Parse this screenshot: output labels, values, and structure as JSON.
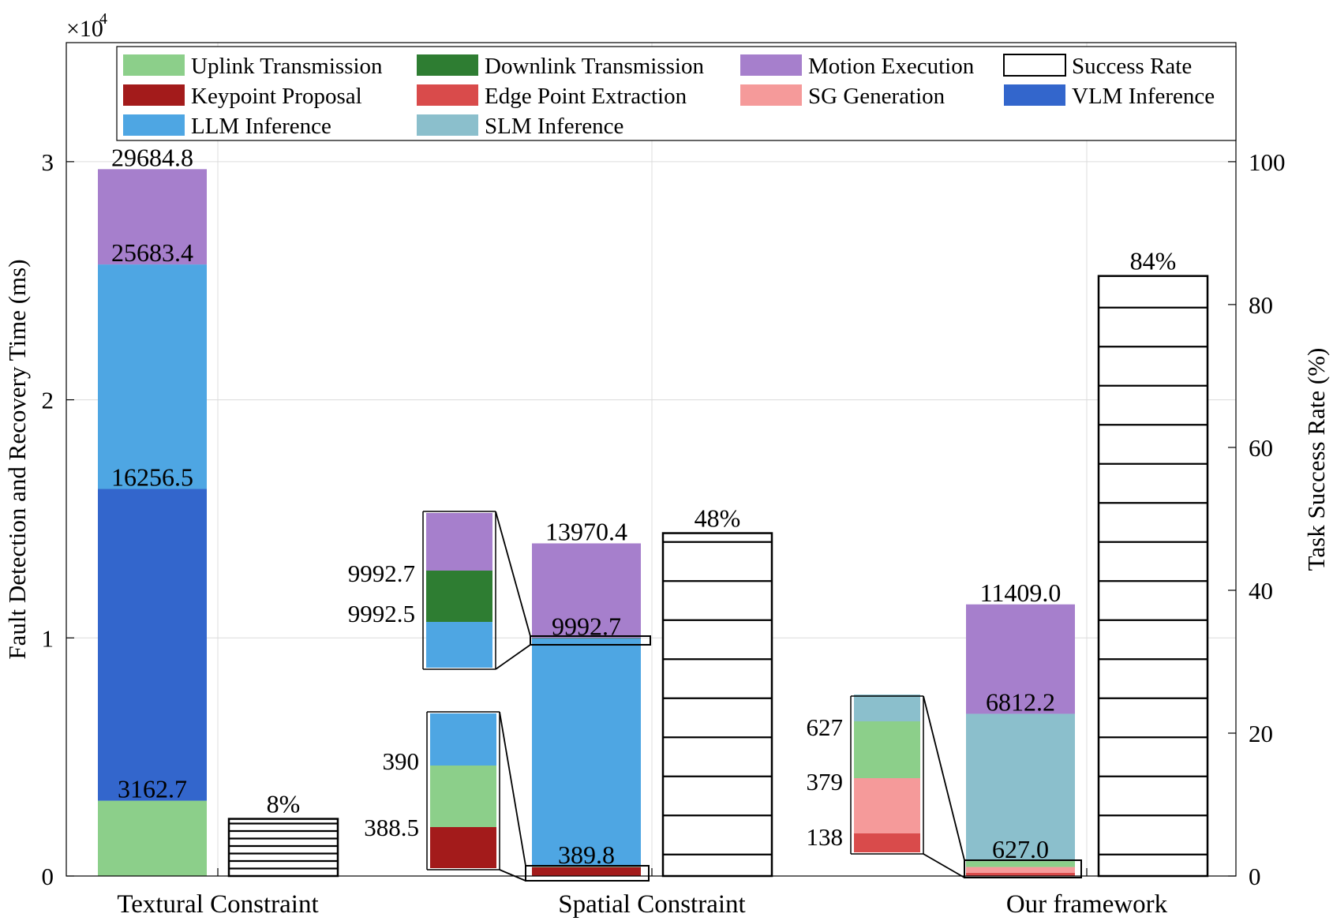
{
  "chart_data": {
    "type": "bar",
    "stacked": true,
    "categories": [
      "Textural Constraint",
      "Spatial Constraint",
      "Our framework"
    ],
    "ylabel_left": "Fault Detection and Recovery Time (ms)",
    "ylabel_right": "Task Success Rate (%)",
    "exponent_label": "×10",
    "exponent_power": "4",
    "ylim_left": [
      0,
      35000
    ],
    "ylim_right": [
      0,
      116.67
    ],
    "yticks_left": [
      {
        "value": 0,
        "label": "0"
      },
      {
        "value": 10000,
        "label": "1"
      },
      {
        "value": 20000,
        "label": "2"
      },
      {
        "value": 30000,
        "label": "3"
      }
    ],
    "yticks_right": [
      {
        "value": 0,
        "label": "0"
      },
      {
        "value": 20,
        "label": "20"
      },
      {
        "value": 40,
        "label": "40"
      },
      {
        "value": 60,
        "label": "60"
      },
      {
        "value": 80,
        "label": "80"
      },
      {
        "value": 100,
        "label": "100"
      }
    ],
    "grid": true,
    "legend_placement": "top",
    "legend": [
      {
        "key": "uplink",
        "label": "Uplink Transmission",
        "color": "#8ccf8a"
      },
      {
        "key": "downlink",
        "label": "Downlink Transmission",
        "color": "#2e7d32"
      },
      {
        "key": "motion",
        "label": "Motion Execution",
        "color": "#a67fcc"
      },
      {
        "key": "success",
        "label": "Success Rate",
        "color": "#ffffff"
      },
      {
        "key": "keypoint",
        "label": "Keypoint Proposal",
        "color": "#a31b1b"
      },
      {
        "key": "edge",
        "label": "Edge Point Extraction",
        "color": "#d94b4b"
      },
      {
        "key": "sg",
        "label": "SG Generation",
        "color": "#f59a9a"
      },
      {
        "key": "vlm",
        "label": "VLM Inference",
        "color": "#3366cc"
      },
      {
        "key": "llm",
        "label": "LLM Inference",
        "color": "#4ea6e3"
      },
      {
        "key": "slm",
        "label": "SLM Inference",
        "color": "#8bbfcc"
      }
    ],
    "stacks": [
      {
        "category": "Textural Constraint",
        "segments": [
          {
            "key": "uplink",
            "from": 0,
            "to": 3162.7
          },
          {
            "key": "vlm",
            "from": 3162.7,
            "to": 16256.5
          },
          {
            "key": "llm",
            "from": 16256.5,
            "to": 25683.4
          },
          {
            "key": "motion",
            "from": 25683.4,
            "to": 29684.8
          }
        ],
        "labels": [
          {
            "value": 3162.7,
            "text": "3162.7"
          },
          {
            "value": 16256.5,
            "text": "16256.5"
          },
          {
            "value": 25683.4,
            "text": "25683.4"
          },
          {
            "value": 29684.8,
            "text": "29684.8"
          }
        ]
      },
      {
        "category": "Spatial Constraint",
        "segments": [
          {
            "key": "keypoint",
            "from": 0,
            "to": 388.5
          },
          {
            "key": "uplink",
            "from": 388.5,
            "to": 389.8
          },
          {
            "key": "llm",
            "from": 389.8,
            "to": 9992.5
          },
          {
            "key": "downlink",
            "from": 9992.5,
            "to": 9992.7
          },
          {
            "key": "motion",
            "from": 9992.7,
            "to": 13970.4
          }
        ],
        "labels": [
          {
            "value": 389.8,
            "text": "389.8"
          },
          {
            "value": 9992.7,
            "text": "9992.7"
          },
          {
            "value": 13970.4,
            "text": "13970.4"
          }
        ]
      },
      {
        "category": "Our framework",
        "segments": [
          {
            "key": "edge",
            "from": 0,
            "to": 138
          },
          {
            "key": "sg",
            "from": 138,
            "to": 379
          },
          {
            "key": "uplink",
            "from": 379,
            "to": 627
          },
          {
            "key": "slm",
            "from": 627,
            "to": 6812.2
          },
          {
            "key": "motion",
            "from": 6812.2,
            "to": 11409.0
          }
        ],
        "labels": [
          {
            "value": 627.0,
            "text": "627.0"
          },
          {
            "value": 6812.2,
            "text": "6812.2"
          },
          {
            "value": 11409.0,
            "text": "11409.0"
          }
        ]
      }
    ],
    "success_rate": [
      {
        "category": "Textural Constraint",
        "value": 8,
        "label": "8%"
      },
      {
        "category": "Spatial Constraint",
        "value": 48,
        "label": "48%"
      },
      {
        "category": "Our framework",
        "value": 84,
        "label": "84%"
      }
    ],
    "insets": [
      {
        "category": "Spatial Constraint",
        "segments": [
          "llm",
          "downlink",
          "motion"
        ],
        "tick_labels": [
          "9992.7",
          "9992.5"
        ]
      },
      {
        "category": "Spatial Constraint",
        "segments": [
          "keypoint",
          "uplink",
          "llm"
        ],
        "tick_labels": [
          "390",
          "388.5"
        ]
      },
      {
        "category": "Our framework",
        "segments": [
          "edge",
          "sg",
          "uplink",
          "slm"
        ],
        "tick_labels": [
          "627",
          "379",
          "138"
        ]
      }
    ]
  }
}
